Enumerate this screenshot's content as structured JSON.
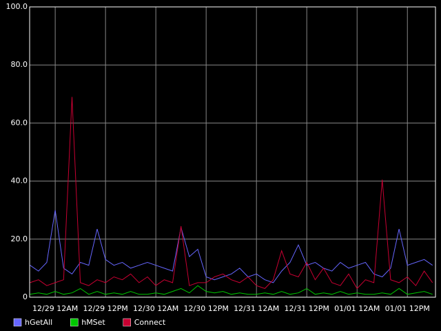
{
  "chart_data": {
    "type": "line",
    "x": [
      -6,
      -4,
      -2,
      0,
      2,
      4,
      6,
      8,
      10,
      12,
      14,
      16,
      18,
      20,
      22,
      24,
      26,
      28,
      30,
      32,
      34,
      36,
      38,
      40,
      42,
      44,
      46,
      48,
      50,
      52,
      54,
      56,
      58,
      60,
      62,
      64,
      66,
      68,
      70,
      72,
      74,
      76,
      78,
      80,
      82,
      84,
      86,
      88,
      90
    ],
    "series": [
      {
        "name": "hGetAll",
        "color": "#6666ff",
        "values": [
          11,
          9,
          12,
          30,
          10,
          8,
          12,
          11,
          23.5,
          13,
          11,
          12,
          10,
          11,
          12,
          11,
          10,
          9,
          24,
          14,
          16.5,
          7,
          6,
          7,
          8,
          10,
          7,
          8,
          6,
          5,
          9,
          12,
          18,
          11,
          12,
          10,
          9,
          12,
          10,
          11,
          12,
          8,
          7,
          10,
          23.5,
          11,
          12,
          13,
          11
        ]
      },
      {
        "name": "hMSet",
        "color": "#00c800",
        "values": [
          1,
          1.5,
          1,
          2,
          1,
          1.5,
          3,
          1,
          2,
          1,
          1.5,
          1,
          2,
          1,
          1,
          1.5,
          1,
          2,
          3,
          1.5,
          4,
          2,
          1.5,
          2,
          1,
          1.5,
          1,
          1,
          1.5,
          1,
          2,
          1,
          1.5,
          3,
          1,
          1.5,
          1,
          2,
          1,
          1.5,
          1,
          1,
          1.5,
          1,
          3,
          1,
          1.5,
          2,
          1
        ]
      },
      {
        "name": "Connect",
        "color": "#c80032",
        "values": [
          5,
          6,
          4,
          5,
          6,
          69,
          5,
          4,
          6,
          5,
          7,
          6,
          8,
          5,
          7,
          4,
          6,
          5,
          24.5,
          4,
          5,
          5,
          7,
          8,
          6,
          5,
          7,
          4,
          3,
          6,
          16,
          8,
          7,
          12,
          6,
          10,
          5,
          4,
          8,
          3,
          6,
          5,
          40.5,
          6,
          5,
          7,
          4,
          9,
          5
        ]
      }
    ],
    "xlim": [
      -6.1,
      90.7
    ],
    "xticks": [
      {
        "value": 0,
        "label": "12/29 12AM"
      },
      {
        "value": 12,
        "label": "12/29 12PM"
      },
      {
        "value": 24,
        "label": "12/30 12AM"
      },
      {
        "value": 36,
        "label": "12/30 12PM"
      },
      {
        "value": 48,
        "label": "12/31 12AM"
      },
      {
        "value": 60,
        "label": "12/31 12PM"
      },
      {
        "value": 72,
        "label": "01/01 12AM"
      },
      {
        "value": 84,
        "label": "01/01 12PM"
      }
    ],
    "ylim": [
      0,
      100
    ],
    "yticks": [
      0,
      {
        "value": 20,
        "label": "20.0"
      },
      {
        "value": 40,
        "label": "40.0"
      },
      {
        "value": 60,
        "label": "60.0"
      },
      {
        "value": 80,
        "label": "80.0"
      },
      {
        "value": 100,
        "label": "100.0"
      }
    ],
    "grid": true
  }
}
